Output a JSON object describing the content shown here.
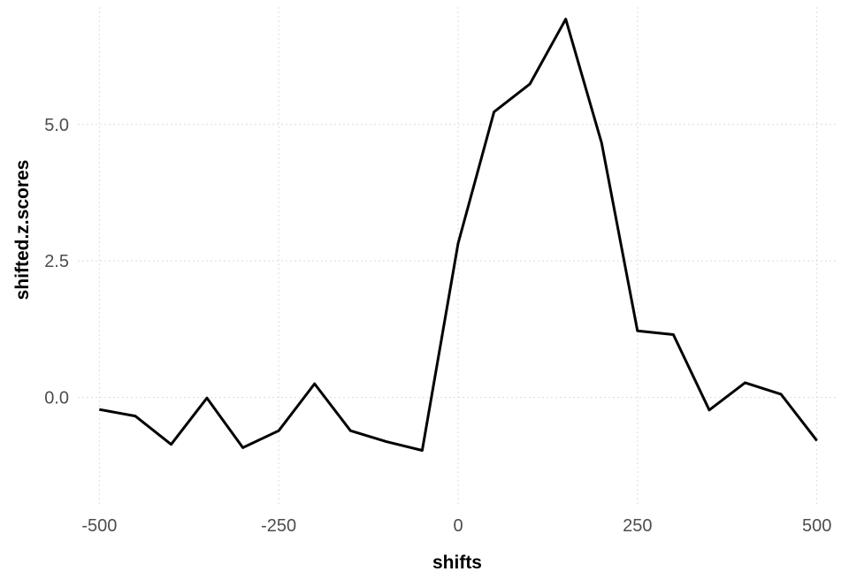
{
  "chart_data": {
    "type": "line",
    "title": "",
    "xlabel": "shifts",
    "ylabel": "shifted.z.scores",
    "x": [
      -500,
      -450,
      -400,
      -350,
      -300,
      -250,
      -200,
      -150,
      -100,
      -50,
      0,
      50,
      100,
      150,
      200,
      250,
      300,
      350,
      400,
      450,
      500
    ],
    "series": [
      {
        "values": [
          -0.22,
          -0.34,
          -0.86,
          -0.01,
          -0.92,
          -0.61,
          0.25,
          -0.61,
          -0.81,
          -0.97,
          2.82,
          5.23,
          5.74,
          6.93,
          4.66,
          1.22,
          1.15,
          -0.23,
          0.27,
          0.06,
          -0.79
        ],
        "color": "#000000"
      }
    ],
    "xlim": [
      -530,
      530
    ],
    "ylim": [
      -1.95,
      7.15
    ],
    "xticks": [
      -500,
      -250,
      0,
      250,
      500
    ],
    "xtick_labels": [
      "-500",
      "-250",
      "0",
      "250",
      "500"
    ],
    "yticks": [
      0,
      2.5,
      5
    ],
    "ytick_labels": [
      "0.0",
      "2.5",
      "5.0"
    ],
    "grid": true,
    "legend": "none"
  }
}
